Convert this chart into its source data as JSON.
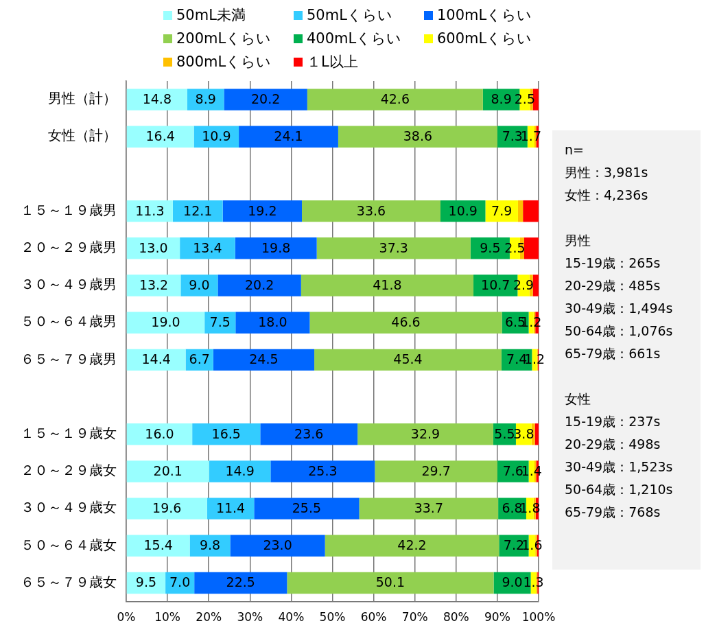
{
  "chart_data": {
    "type": "bar",
    "orientation": "horizontal",
    "stacked": true,
    "categories": [
      "男性（計）",
      "女性（計）",
      null,
      "１５～１９歳男",
      "２０～２９歳男",
      "３０～４９歳男",
      "５０～６４歳男",
      "６５～７９歳男",
      null,
      "１５～１９歳女",
      "２０～２９歳女",
      "３０～４９歳女",
      "５０～６４歳女",
      "６５～７９歳女"
    ],
    "series": [
      {
        "name": "50mL未満",
        "color": "#99ffff",
        "values": [
          14.8,
          16.4,
          null,
          11.3,
          13.0,
          13.2,
          19.0,
          14.4,
          null,
          16.0,
          20.1,
          19.6,
          15.4,
          9.5
        ],
        "value_labels": [
          "14.8",
          "16.4",
          null,
          "11.3",
          "13.0",
          "13.2",
          "19.0",
          "14.4",
          null,
          "16.0",
          "20.1",
          "19.6",
          "15.4",
          "9.5"
        ]
      },
      {
        "name": "50mLくらい",
        "color": "#33ccff",
        "values": [
          8.9,
          10.9,
          null,
          12.1,
          13.4,
          9.0,
          7.5,
          6.7,
          null,
          16.5,
          14.9,
          11.4,
          9.8,
          7.0
        ],
        "value_labels": [
          "8.9",
          "10.9",
          null,
          "12.1",
          "13.4",
          "9.0",
          "7.5",
          "6.7",
          null,
          "16.5",
          "14.9",
          "11.4",
          "9.8",
          "7.0"
        ]
      },
      {
        "name": "100mLくらい",
        "color": "#0066ff",
        "values": [
          20.2,
          24.1,
          null,
          19.2,
          19.8,
          20.2,
          18.0,
          24.5,
          null,
          23.6,
          25.3,
          25.5,
          23.0,
          22.5
        ],
        "value_labels": [
          "20.2",
          "24.1",
          null,
          "19.2",
          "19.8",
          "20.2",
          "18.0",
          "24.5",
          null,
          "23.6",
          "25.3",
          "25.5",
          "23.0",
          "22.5"
        ]
      },
      {
        "name": "200mLくらい",
        "color": "#92d050",
        "values": [
          42.6,
          38.6,
          null,
          33.6,
          37.3,
          41.8,
          46.6,
          45.4,
          null,
          32.9,
          29.7,
          33.7,
          42.2,
          50.1
        ],
        "value_labels": [
          "42.6",
          "38.6",
          null,
          "33.6",
          "37.3",
          "41.8",
          "46.6",
          "45.4",
          null,
          "32.9",
          "29.7",
          "33.7",
          "42.2",
          "50.1"
        ]
      },
      {
        "name": "400mLくらい",
        "color": "#00b050",
        "values": [
          8.9,
          7.3,
          null,
          10.9,
          9.5,
          10.7,
          6.5,
          7.4,
          null,
          5.5,
          7.6,
          6.8,
          7.2,
          9.0
        ],
        "value_labels": [
          "8.9",
          "7.3",
          null,
          "10.9",
          "9.5",
          "10.7",
          "6.5",
          "7.4",
          null,
          "5.5",
          "7.6",
          "6.8",
          "7.2",
          "9.0"
        ]
      },
      {
        "name": "600mLくらい",
        "color": "#ffff00",
        "values": [
          2.5,
          1.7,
          null,
          7.9,
          2.5,
          2.9,
          1.2,
          1.2,
          null,
          3.8,
          1.4,
          1.8,
          1.6,
          1.3
        ],
        "value_labels": [
          "2.5",
          "1.7",
          null,
          "7.9",
          "2.5",
          "2.9",
          "1.2",
          "1.2",
          null,
          "3.8",
          "1.4",
          "1.8",
          "1.6",
          "1.3"
        ]
      },
      {
        "name": "800mLくらい",
        "color": "#ffc000",
        "values": [
          0.7,
          0.4,
          null,
          1.2,
          1.0,
          0.8,
          0.4,
          0.2,
          null,
          0.8,
          0.4,
          0.5,
          0.4,
          0.3
        ]
      },
      {
        "name": "１L以上",
        "color": "#ff0000",
        "values": [
          1.4,
          0.6,
          null,
          3.8,
          3.5,
          1.4,
          0.8,
          0.2,
          null,
          0.9,
          0.6,
          0.7,
          0.4,
          0.3
        ]
      }
    ],
    "xlim": [
      0,
      100
    ],
    "xticks": [
      {
        "value": 0,
        "label": "0%"
      },
      {
        "value": 10,
        "label": "10%"
      },
      {
        "value": 20,
        "label": "20%"
      },
      {
        "value": 30,
        "label": "30%"
      },
      {
        "value": 40,
        "label": "40%"
      },
      {
        "value": 50,
        "label": "50%"
      },
      {
        "value": 60,
        "label": "60%"
      },
      {
        "value": 70,
        "label": "70%"
      },
      {
        "value": 80,
        "label": "80%"
      },
      {
        "value": 90,
        "label": "90%"
      },
      {
        "value": 100,
        "label": "100%"
      }
    ],
    "grid": "x",
    "legend": "top",
    "annotations": [
      "n=\n男性：3,981s\n女性：4,236s",
      "男性\n15-19歳：265s\n20-29歳：485s\n30-49歳：1,494s\n50-64歳：1,076s\n65-79歳：661s",
      "女性\n15-19歳：237s\n20-29歳：498s\n30-49歳：1,523s\n50-64歳：1,210s\n65-79歳：768s"
    ]
  }
}
